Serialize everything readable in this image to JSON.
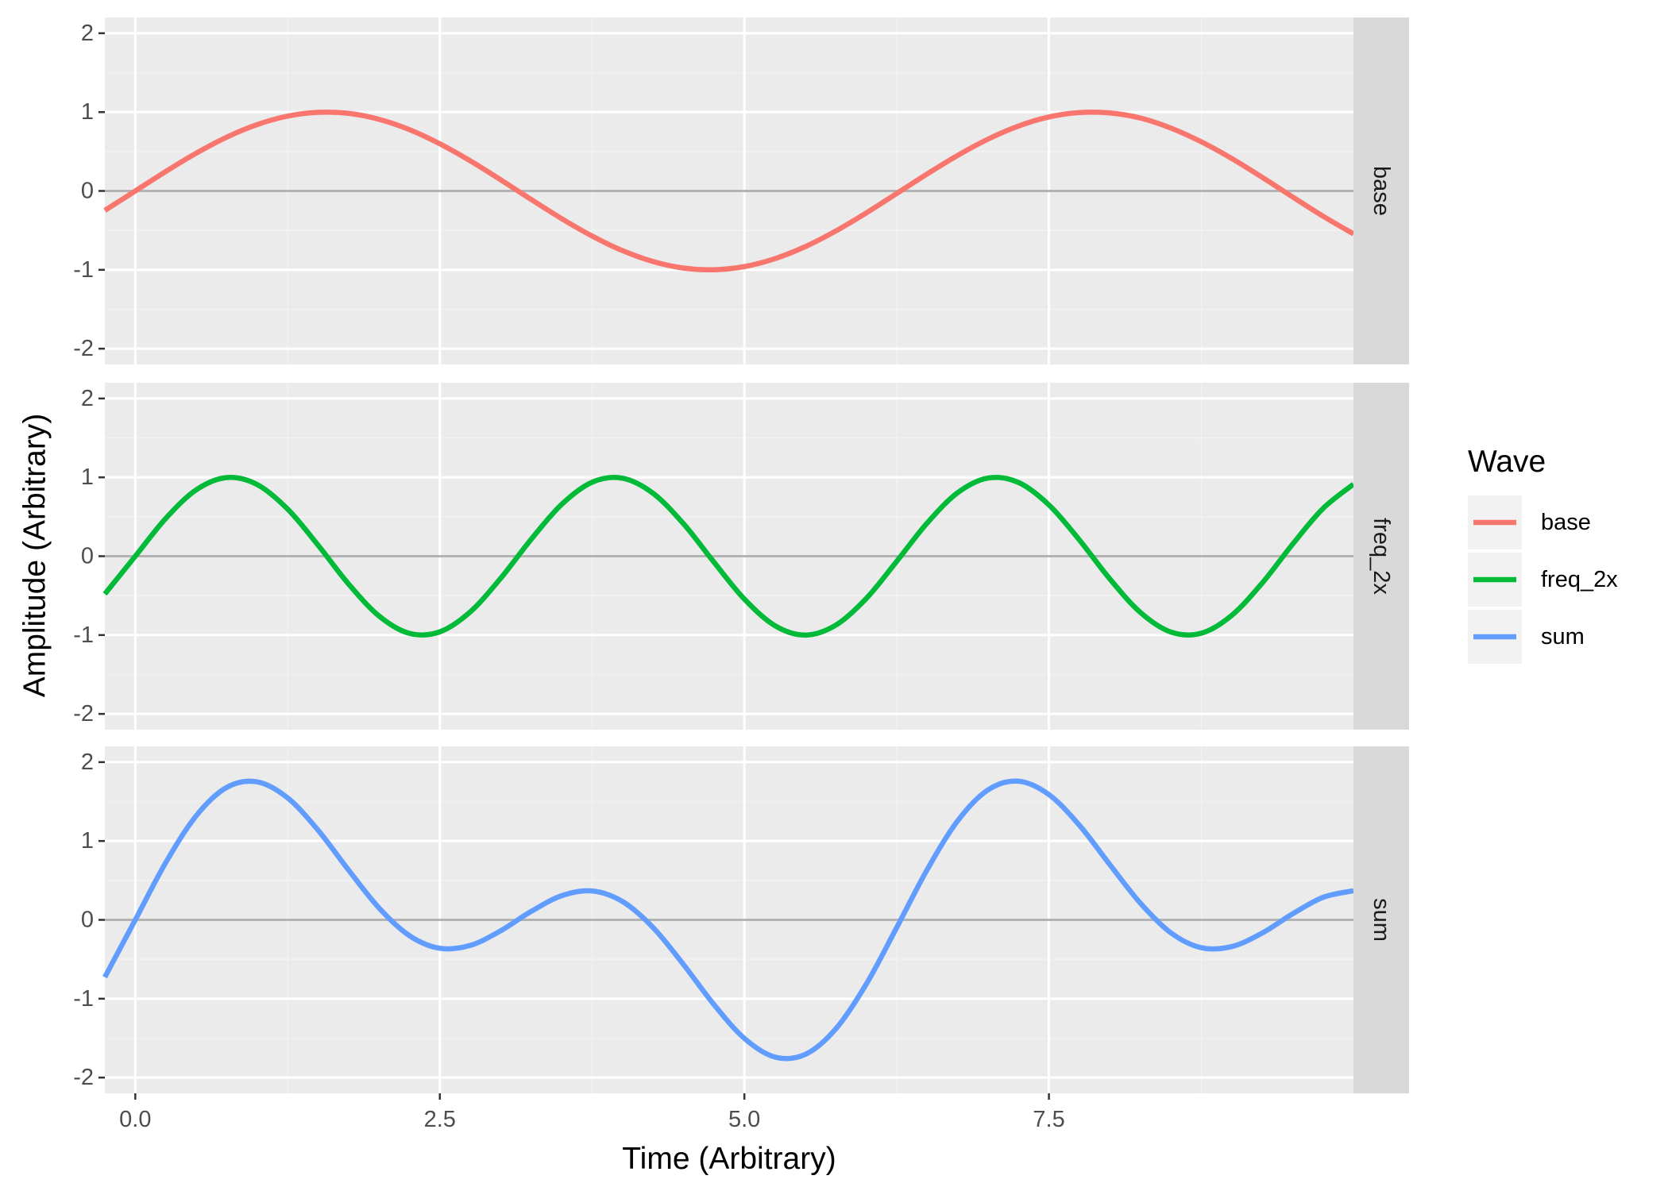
{
  "chart_data": {
    "type": "line",
    "layout": "faceted-rows",
    "xlabel": "Time (Arbitrary)",
    "ylabel": "Amplitude (Arbitrary)",
    "xlim": [
      -0.25,
      10
    ],
    "ylim": [
      -2.2,
      2.2
    ],
    "x_ticks": [
      0.0,
      2.5,
      5.0,
      7.5
    ],
    "x_tick_labels": [
      "0.0",
      "2.5",
      "5.0",
      "7.5"
    ],
    "y_ticks": [
      -2,
      -1,
      0,
      1,
      2
    ],
    "y_tick_labels": [
      "-2",
      "-1",
      "0",
      "1",
      "2"
    ],
    "grid": true,
    "reference_line_y": 0,
    "x_samples": [
      -0.25,
      0,
      0.25,
      0.5,
      0.75,
      1,
      1.25,
      1.5,
      1.75,
      2,
      2.25,
      2.5,
      2.75,
      3,
      3.25,
      3.5,
      3.75,
      4,
      4.25,
      4.5,
      4.75,
      5,
      5.25,
      5.5,
      5.75,
      6,
      6.25,
      6.5,
      6.75,
      7,
      7.25,
      7.5,
      7.75,
      8,
      8.25,
      8.5,
      8.75,
      9,
      9.25,
      9.5,
      9.75,
      10
    ],
    "series": [
      {
        "name": "base",
        "color": "#F8766D",
        "values": [
          -0.247,
          0,
          0.247,
          0.479,
          0.682,
          0.841,
          0.949,
          0.997,
          0.984,
          0.909,
          0.778,
          0.598,
          0.382,
          0.141,
          -0.108,
          -0.351,
          -0.572,
          -0.757,
          -0.895,
          -0.978,
          -0.999,
          -0.959,
          -0.859,
          -0.706,
          -0.508,
          -0.279,
          -0.033,
          0.215,
          0.45,
          0.657,
          0.823,
          0.938,
          0.994,
          0.989,
          0.925,
          0.798,
          0.624,
          0.412,
          0.174,
          -0.075,
          -0.32,
          -0.544
        ]
      },
      {
        "name": "freq_2x",
        "color": "#00BA38",
        "values": [
          -0.479,
          0,
          0.479,
          0.841,
          0.997,
          0.909,
          0.598,
          0.141,
          -0.351,
          -0.757,
          -0.978,
          -0.959,
          -0.706,
          -0.279,
          0.215,
          0.657,
          0.938,
          0.989,
          0.798,
          0.412,
          -0.075,
          -0.544,
          -0.88,
          -1.0,
          -0.875,
          -0.537,
          -0.066,
          0.42,
          0.804,
          0.991,
          0.935,
          0.65,
          0.206,
          -0.288,
          -0.712,
          -0.961,
          -0.977,
          -0.751,
          -0.342,
          0.151,
          0.605,
          0.913
        ]
      },
      {
        "name": "sum",
        "color": "#619CFF",
        "values": [
          -0.726,
          0,
          0.726,
          1.32,
          1.679,
          1.75,
          1.547,
          1.138,
          0.633,
          0.152,
          -0.2,
          -0.361,
          -0.324,
          -0.138,
          0.107,
          0.306,
          0.366,
          0.232,
          -0.097,
          -0.566,
          -1.074,
          -1.503,
          -1.739,
          -1.706,
          -1.383,
          -0.816,
          -0.099,
          0.635,
          1.254,
          1.648,
          1.758,
          1.588,
          1.2,
          0.701,
          0.213,
          -0.163,
          -0.353,
          -0.339,
          -0.168,
          0.076,
          0.285,
          0.369
        ]
      }
    ],
    "legend": {
      "title": "Wave",
      "position": "right",
      "entries": [
        "base",
        "freq_2x",
        "sum"
      ]
    }
  },
  "colors": {
    "panel_background": "#EBEBEB",
    "grid_major": "#FFFFFF",
    "grid_minor": "#F2F2F2",
    "strip_background": "#D9D9D9",
    "zero_line": "#B3B3B3"
  }
}
